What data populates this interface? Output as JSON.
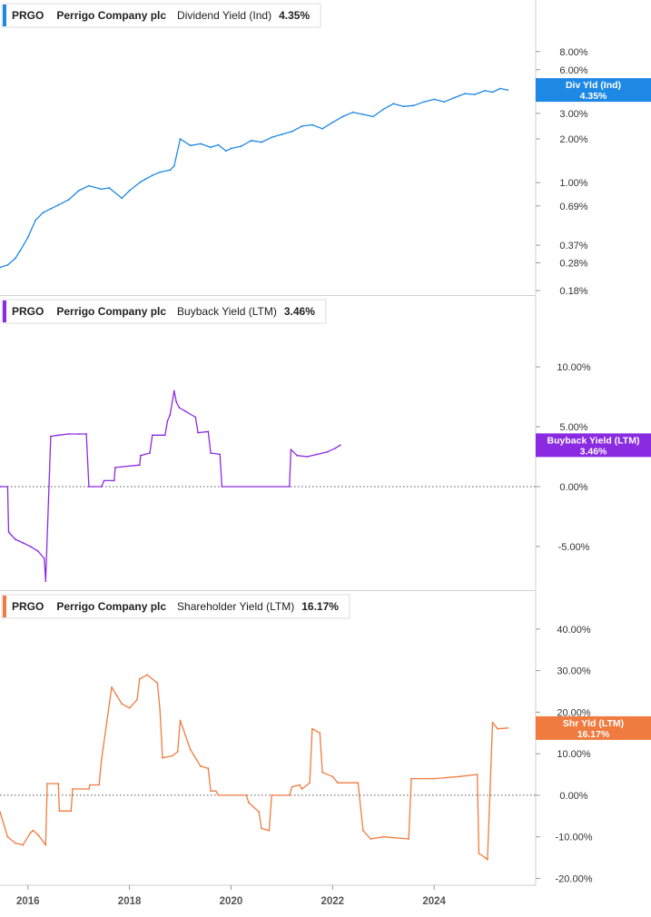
{
  "x_axis": {
    "tick_labels": [
      "2016",
      "2018",
      "2020",
      "2022",
      "2024"
    ],
    "tick_values": [
      2016,
      2018,
      2020,
      2022,
      2024
    ],
    "range": [
      2015.45,
      2026.0
    ]
  },
  "chart_data": [
    {
      "type": "line",
      "ticker": "PRGO",
      "company": "Perrigo Company plc",
      "metric": "Dividend Yield (Ind)",
      "current_value": "4.35%",
      "badge": {
        "line1": "Div Yld (Ind)",
        "line2": "4.35%",
        "value": 4.35
      },
      "color": "#1e88e5",
      "scale": "log",
      "ylim": [
        0.175,
        14.0
      ],
      "y_tick_labels": [
        "8.00%",
        "6.00%",
        "3.00%",
        "2.00%",
        "1.00%",
        "0.69%",
        "0.37%",
        "0.28%",
        "0.18%"
      ],
      "y_tick_values": [
        8.0,
        6.0,
        3.0,
        2.0,
        1.0,
        0.69,
        0.37,
        0.28,
        0.18
      ],
      "zero_line": false,
      "series": [
        {
          "x": [
            2015.45,
            2015.6,
            2015.75,
            2015.85,
            2016.0,
            2016.15,
            2016.3,
            2016.45,
            2016.6,
            2016.8,
            2017.0,
            2017.2,
            2017.45,
            2017.6,
            2017.85,
            2018.0,
            2018.2,
            2018.3,
            2018.45,
            2018.6,
            2018.8,
            2018.88,
            2019.0,
            2019.2,
            2019.4,
            2019.6,
            2019.75,
            2019.9,
            2020.0,
            2020.2,
            2020.4,
            2020.6,
            2020.8,
            2021.0,
            2021.2,
            2021.4,
            2021.6,
            2021.8,
            2022.0,
            2022.2,
            2022.4,
            2022.6,
            2022.8,
            2023.0,
            2023.2,
            2023.4,
            2023.6,
            2023.8,
            2024.0,
            2024.2,
            2024.4,
            2024.6,
            2024.8,
            2025.0,
            2025.15,
            2025.3,
            2025.45
          ],
          "y": [
            0.26,
            0.27,
            0.3,
            0.34,
            0.42,
            0.55,
            0.62,
            0.66,
            0.7,
            0.76,
            0.88,
            0.95,
            0.9,
            0.92,
            0.78,
            0.88,
            1.0,
            1.05,
            1.12,
            1.18,
            1.22,
            1.3,
            2.0,
            1.8,
            1.85,
            1.75,
            1.82,
            1.65,
            1.72,
            1.78,
            1.95,
            1.9,
            2.05,
            2.15,
            2.25,
            2.45,
            2.5,
            2.35,
            2.6,
            2.85,
            3.05,
            2.95,
            2.85,
            3.2,
            3.5,
            3.35,
            3.4,
            3.6,
            3.75,
            3.6,
            3.85,
            4.1,
            4.05,
            4.3,
            4.2,
            4.45,
            4.35
          ]
        }
      ]
    },
    {
      "type": "line",
      "ticker": "PRGO",
      "company": "Perrigo Company plc",
      "metric": "Buyback Yield (LTM)",
      "current_value": "3.46%",
      "badge": {
        "line1": "Buyback Yield (LTM)",
        "line2": "3.46%",
        "value": 3.46
      },
      "color": "#8a2be2",
      "scale": "linear",
      "ylim": [
        -8.5,
        13.5
      ],
      "y_tick_labels": [
        "10.00%",
        "5.00%",
        "0.00%",
        "-5.00%"
      ],
      "y_tick_values": [
        10.0,
        5.0,
        0.0,
        -5.0
      ],
      "zero_line": true,
      "series": [
        {
          "x": [
            2015.45,
            2015.6,
            2015.62,
            2015.75,
            2015.9,
            2016.05,
            2016.2,
            2016.32,
            2016.35,
            2016.45,
            2016.6,
            2016.8,
            2017.0,
            2017.15,
            2017.2,
            2017.45,
            2017.5,
            2017.7,
            2017.72,
            2018.2,
            2018.22,
            2018.4,
            2018.45,
            2018.7,
            2018.75,
            2018.8,
            2018.88,
            2018.92,
            2018.98,
            2019.1,
            2019.3,
            2019.35,
            2019.55,
            2019.6,
            2019.78,
            2019.82,
            2021.15,
            2021.18,
            2021.3,
            2021.5,
            2021.7,
            2021.9,
            2022.05,
            2022.15
          ],
          "y": [
            0.0,
            0.0,
            -3.8,
            -4.4,
            -4.7,
            -5.0,
            -5.4,
            -6.0,
            -7.9,
            4.2,
            4.3,
            4.4,
            4.4,
            4.4,
            0.0,
            0.0,
            0.5,
            0.5,
            1.6,
            1.8,
            2.6,
            2.8,
            4.3,
            4.3,
            5.5,
            6.0,
            8.0,
            7.1,
            6.6,
            6.3,
            5.8,
            4.5,
            4.6,
            2.8,
            2.7,
            0.0,
            0.0,
            3.1,
            2.6,
            2.5,
            2.7,
            2.9,
            3.2,
            3.46
          ]
        }
      ]
    },
    {
      "type": "line",
      "ticker": "PRGO",
      "company": "Perrigo Company plc",
      "metric": "Shareholder Yield (LTM)",
      "current_value": "16.17%",
      "badge": {
        "line1": "Shr Yld (LTM)",
        "line2": "16.17%",
        "value": 16.17
      },
      "color": "#f07b3f",
      "scale": "linear",
      "ylim": [
        -21.0,
        45.0
      ],
      "y_tick_labels": [
        "40.00%",
        "30.00%",
        "20.00%",
        "10.00%",
        "0.00%",
        "-10.00%",
        "-20.00%"
      ],
      "y_tick_values": [
        40.0,
        30.0,
        20.0,
        10.0,
        0.0,
        -10.0,
        -20.0
      ],
      "zero_line": true,
      "series": [
        {
          "x": [
            2015.45,
            2015.6,
            2015.75,
            2015.9,
            2016.05,
            2016.1,
            2016.2,
            2016.35,
            2016.38,
            2016.6,
            2016.62,
            2016.85,
            2016.88,
            2017.2,
            2017.22,
            2017.4,
            2017.45,
            2017.65,
            2017.75,
            2017.85,
            2018.0,
            2018.15,
            2018.2,
            2018.35,
            2018.55,
            2018.6,
            2018.65,
            2018.85,
            2018.95,
            2019.0,
            2019.2,
            2019.4,
            2019.55,
            2019.6,
            2019.7,
            2019.75,
            2020.3,
            2020.35,
            2020.55,
            2020.6,
            2020.75,
            2020.8,
            2021.15,
            2021.2,
            2021.35,
            2021.4,
            2021.55,
            2021.6,
            2021.75,
            2021.8,
            2022.0,
            2022.1,
            2022.5,
            2022.6,
            2022.75,
            2023.0,
            2023.5,
            2023.55,
            2024.0,
            2024.5,
            2024.85,
            2024.88,
            2025.0,
            2025.05,
            2025.15,
            2025.25,
            2025.45
          ],
          "y": [
            -4.0,
            -10.0,
            -11.5,
            -12.0,
            -9.0,
            -8.5,
            -9.5,
            -12.0,
            2.8,
            2.8,
            -3.8,
            -3.8,
            1.5,
            1.5,
            2.5,
            2.5,
            8.5,
            26.0,
            24.0,
            22.0,
            21.0,
            23.0,
            28.0,
            29.0,
            27.0,
            20.5,
            9.0,
            9.5,
            10.5,
            18.0,
            11.0,
            7.0,
            6.5,
            1.0,
            1.0,
            0.0,
            0.0,
            -1.8,
            -4.0,
            -8.0,
            -8.5,
            0.0,
            0.0,
            2.0,
            2.5,
            1.5,
            3.0,
            16.0,
            15.0,
            5.5,
            4.5,
            3.0,
            3.0,
            -8.5,
            -10.5,
            -10.0,
            -10.5,
            4.0,
            4.0,
            4.5,
            5.0,
            -14.0,
            -15.0,
            -15.5,
            17.5,
            16.0,
            16.17
          ]
        }
      ]
    }
  ]
}
